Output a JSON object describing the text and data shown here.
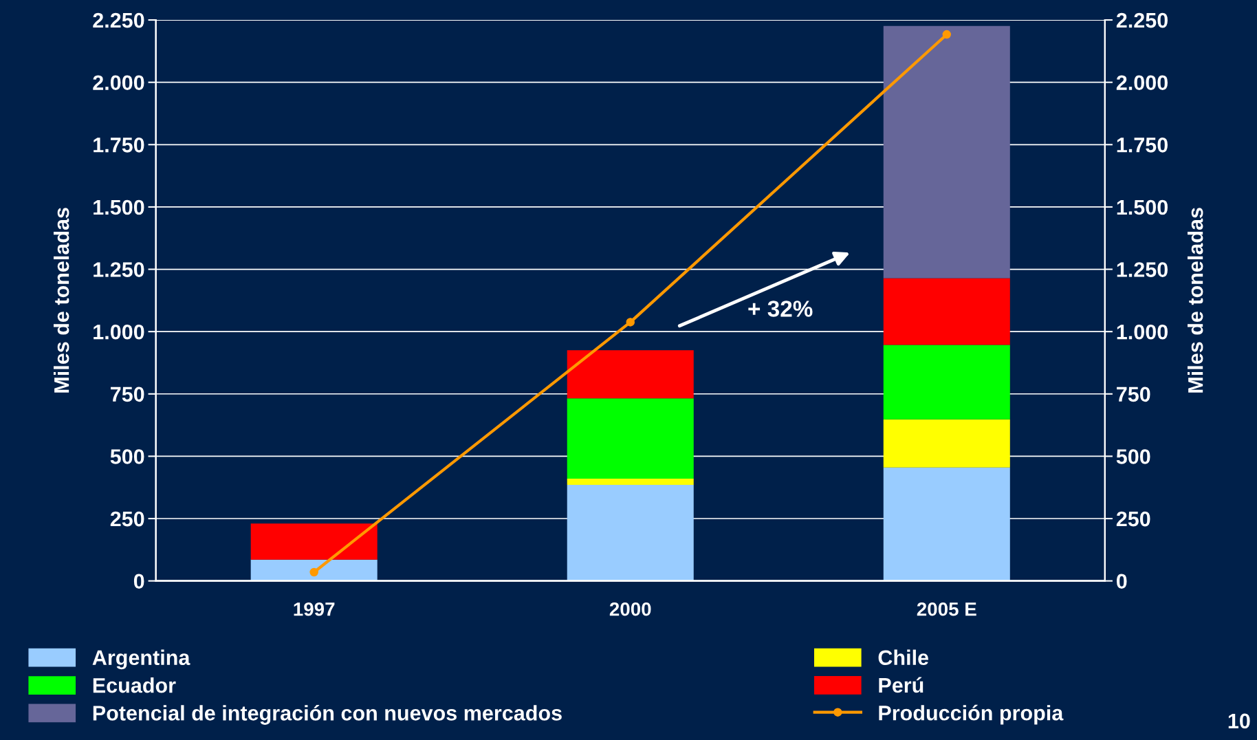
{
  "chart_data": {
    "type": "bar",
    "stacked": true,
    "ylabel": "Miles de toneladas",
    "y2label": "Miles de toneladas",
    "categories": [
      "1997",
      "2000",
      "2005 E"
    ],
    "series": [
      {
        "name": "Argentina",
        "color": "#99ccff",
        "values": [
          85,
          385,
          455
        ]
      },
      {
        "name": "Chile",
        "color": "#ffff00",
        "values": [
          null,
          25,
          193
        ]
      },
      {
        "name": "Ecuador",
        "color": "#00ff00",
        "values": [
          null,
          322,
          299
        ]
      },
      {
        "name": "Perú",
        "color": "#ff0000",
        "values": [
          145,
          193,
          267
        ]
      },
      {
        "name": "Potencial de integración con nuevos mercados",
        "color": "#666699",
        "values": [
          null,
          null,
          1012
        ]
      },
      {
        "name": "Producción propia",
        "type": "line",
        "color": "#ff9900",
        "marker": "circle",
        "values": [
          35,
          1038,
          2192
        ]
      }
    ],
    "ylim": [
      0,
      2250
    ],
    "yticks": [
      0,
      250,
      500,
      750,
      {
        "value": 1000,
        "label": "1.000"
      },
      {
        "value": 1250,
        "label": "1.250"
      },
      {
        "value": 1500,
        "label": "1.500"
      },
      {
        "value": 1750,
        "label": "1.750"
      },
      {
        "value": 2000,
        "label": "2.000"
      },
      {
        "value": 2250,
        "label": "2.250"
      }
    ],
    "y2lim": [
      0,
      2250
    ],
    "y2ticks": [
      0,
      250,
      500,
      750,
      {
        "value": 1000,
        "label": "1.000"
      },
      {
        "value": 1250,
        "label": "1.250"
      },
      {
        "value": 1500,
        "label": "1.500"
      },
      {
        "value": 1750,
        "label": "1.750"
      },
      {
        "value": 2000,
        "label": "2.000"
      },
      {
        "value": 2250,
        "label": "2.250"
      }
    ],
    "grid": "y",
    "legend": "bottom",
    "annotations": [
      "+ 32%",
      "10"
    ]
  }
}
